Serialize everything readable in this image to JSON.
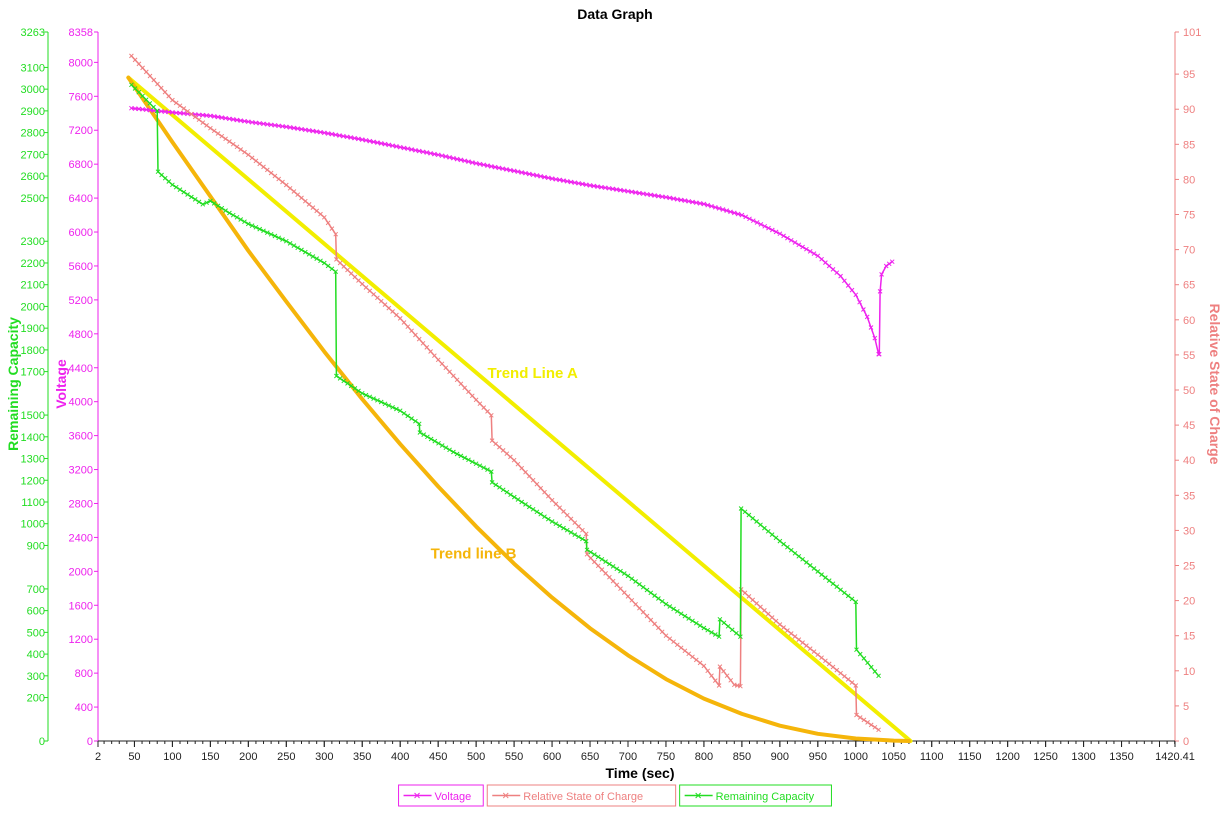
{
  "chart_data": {
    "type": "line",
    "title": "Data Graph",
    "xlabel": "Time (sec)",
    "xlim": [
      2,
      1420.41
    ],
    "x_ticks": [
      "2",
      "50",
      "100",
      "150",
      "200",
      "250",
      "300",
      "350",
      "400",
      "450",
      "500",
      "550",
      "600",
      "650",
      "700",
      "750",
      "800",
      "850",
      "900",
      "950",
      "1000",
      "1050",
      "1100",
      "1150",
      "1200",
      "1250",
      "1300",
      "1350",
      "1420.41"
    ],
    "axes": {
      "remaining_capacity": {
        "label": "Remaining Capacity",
        "color": "#22dd22",
        "ylim": [
          0,
          3263
        ],
        "ticks": [
          {
            "value": 0,
            "label": "0"
          },
          {
            "value": 200,
            "label": "200"
          },
          {
            "value": 300,
            "label": "300"
          },
          {
            "value": 400,
            "label": "400"
          },
          {
            "value": 500,
            "label": "500"
          },
          {
            "value": 600,
            "label": "600"
          },
          {
            "value": 700,
            "label": "700"
          },
          {
            "value": 900,
            "label": "900"
          },
          {
            "value": 1000,
            "label": "1000"
          },
          {
            "value": 1100,
            "label": "1100"
          },
          {
            "value": 1200,
            "label": "1200"
          },
          {
            "value": 1300,
            "label": "1300"
          },
          {
            "value": 1400,
            "label": "1400"
          },
          {
            "value": 1500,
            "label": "1500"
          },
          {
            "value": 1700,
            "label": "1700"
          },
          {
            "value": 1800,
            "label": "1800"
          },
          {
            "value": 1900,
            "label": "1900"
          },
          {
            "value": 2000,
            "label": "2000"
          },
          {
            "value": 2100,
            "label": "2100"
          },
          {
            "value": 2200,
            "label": "2200"
          },
          {
            "value": 2300,
            "label": "2300"
          },
          {
            "value": 2500,
            "label": "2500"
          },
          {
            "value": 2600,
            "label": "2600"
          },
          {
            "value": 2700,
            "label": "2700"
          },
          {
            "value": 2800,
            "label": "2800"
          },
          {
            "value": 2900,
            "label": "2900"
          },
          {
            "value": 3000,
            "label": "3000"
          },
          {
            "value": 3100,
            "label": "3100"
          },
          {
            "value": 3263,
            "label": "3263"
          }
        ]
      },
      "voltage": {
        "label": "Voltage",
        "color": "#ee22ee",
        "ylim": [
          0,
          8358
        ],
        "ticks": [
          {
            "value": 0,
            "label": "0"
          },
          {
            "value": 400,
            "label": "400"
          },
          {
            "value": 800,
            "label": "800"
          },
          {
            "value": 1200,
            "label": "1200"
          },
          {
            "value": 1600,
            "label": "1600"
          },
          {
            "value": 2000,
            "label": "2000"
          },
          {
            "value": 2400,
            "label": "2400"
          },
          {
            "value": 2800,
            "label": "2800"
          },
          {
            "value": 3200,
            "label": "3200"
          },
          {
            "value": 3600,
            "label": "3600"
          },
          {
            "value": 4000,
            "label": "4000"
          },
          {
            "value": 4400,
            "label": "4400"
          },
          {
            "value": 4800,
            "label": "4800"
          },
          {
            "value": 5200,
            "label": "5200"
          },
          {
            "value": 5600,
            "label": "5600"
          },
          {
            "value": 6000,
            "label": "6000"
          },
          {
            "value": 6400,
            "label": "6400"
          },
          {
            "value": 6800,
            "label": "6800"
          },
          {
            "value": 7200,
            "label": "7200"
          },
          {
            "value": 7600,
            "label": "7600"
          },
          {
            "value": 8000,
            "label": "8000"
          },
          {
            "value": 8358,
            "label": "8358"
          }
        ]
      },
      "relative_state_of_charge": {
        "label": "Relative State of Charge",
        "color": "#ee8080",
        "ylim": [
          0,
          101
        ],
        "ticks": [
          {
            "value": 0,
            "label": "0"
          },
          {
            "value": 5,
            "label": "5"
          },
          {
            "value": 10,
            "label": "10"
          },
          {
            "value": 15,
            "label": "15"
          },
          {
            "value": 20,
            "label": "20"
          },
          {
            "value": 25,
            "label": "25"
          },
          {
            "value": 30,
            "label": "30"
          },
          {
            "value": 35,
            "label": "35"
          },
          {
            "value": 40,
            "label": "40"
          },
          {
            "value": 45,
            "label": "45"
          },
          {
            "value": 50,
            "label": "50"
          },
          {
            "value": 55,
            "label": "55"
          },
          {
            "value": 60,
            "label": "60"
          },
          {
            "value": 65,
            "label": "65"
          },
          {
            "value": 70,
            "label": "70"
          },
          {
            "value": 75,
            "label": "75"
          },
          {
            "value": 80,
            "label": "80"
          },
          {
            "value": 85,
            "label": "85"
          },
          {
            "value": 90,
            "label": "90"
          },
          {
            "value": 95,
            "label": "95"
          },
          {
            "value": 101,
            "label": "101"
          }
        ]
      }
    },
    "series": [
      {
        "name": "Voltage",
        "axis": "voltage",
        "color": "#ee22ee",
        "points": [
          [
            46,
            7460
          ],
          [
            100,
            7410
          ],
          [
            150,
            7370
          ],
          [
            200,
            7300
          ],
          [
            250,
            7240
          ],
          [
            300,
            7170
          ],
          [
            350,
            7090
          ],
          [
            400,
            7000
          ],
          [
            450,
            6910
          ],
          [
            500,
            6810
          ],
          [
            550,
            6720
          ],
          [
            600,
            6630
          ],
          [
            650,
            6550
          ],
          [
            700,
            6480
          ],
          [
            750,
            6410
          ],
          [
            800,
            6330
          ],
          [
            850,
            6200
          ],
          [
            900,
            5980
          ],
          [
            950,
            5720
          ],
          [
            980,
            5480
          ],
          [
            1000,
            5260
          ],
          [
            1015,
            5000
          ],
          [
            1025,
            4750
          ],
          [
            1030,
            4560
          ],
          [
            1031,
            4560
          ],
          [
            1032,
            5300
          ],
          [
            1034,
            5500
          ],
          [
            1040,
            5600
          ],
          [
            1048,
            5650
          ]
        ]
      },
      {
        "name": "Relative State of Charge",
        "axis": "relative_state_of_charge",
        "color": "#ee8080",
        "points": [
          [
            46,
            97.6
          ],
          [
            100,
            91.3
          ],
          [
            150,
            87.3
          ],
          [
            200,
            83.5
          ],
          [
            250,
            79.2
          ],
          [
            300,
            74.6
          ],
          [
            315,
            72.2
          ],
          [
            316,
            68.6
          ],
          [
            350,
            65.1
          ],
          [
            400,
            60.2
          ],
          [
            450,
            54.3
          ],
          [
            500,
            48.6
          ],
          [
            520,
            46.4
          ],
          [
            521,
            42.8
          ],
          [
            550,
            40.0
          ],
          [
            600,
            34.3
          ],
          [
            645,
            29.5
          ],
          [
            646,
            26.6
          ],
          [
            700,
            20.6
          ],
          [
            750,
            15.0
          ],
          [
            800,
            10.7
          ],
          [
            820,
            7.9
          ],
          [
            821,
            10.6
          ],
          [
            840,
            8.0
          ],
          [
            848,
            7.8
          ],
          [
            849,
            21.6
          ],
          [
            900,
            16.6
          ],
          [
            950,
            12.3
          ],
          [
            1000,
            7.9
          ],
          [
            1001,
            3.7
          ],
          [
            1030,
            1.6
          ]
        ]
      },
      {
        "name": "Remaining Capacity",
        "axis": "remaining_capacity",
        "color": "#22dd22",
        "points": [
          [
            46,
            3020
          ],
          [
            80,
            2900
          ],
          [
            81,
            2620
          ],
          [
            100,
            2560
          ],
          [
            140,
            2470
          ],
          [
            150,
            2485
          ],
          [
            175,
            2430
          ],
          [
            200,
            2380
          ],
          [
            250,
            2300
          ],
          [
            300,
            2200
          ],
          [
            315,
            2160
          ],
          [
            316,
            1680
          ],
          [
            350,
            1600
          ],
          [
            400,
            1520
          ],
          [
            425,
            1460
          ],
          [
            426,
            1420
          ],
          [
            470,
            1330
          ],
          [
            520,
            1240
          ],
          [
            521,
            1190
          ],
          [
            560,
            1100
          ],
          [
            600,
            1010
          ],
          [
            645,
            920
          ],
          [
            646,
            880
          ],
          [
            700,
            760
          ],
          [
            750,
            630
          ],
          [
            800,
            520
          ],
          [
            820,
            480
          ],
          [
            821,
            560
          ],
          [
            848,
            480
          ],
          [
            849,
            1070
          ],
          [
            900,
            920
          ],
          [
            950,
            780
          ],
          [
            1000,
            640
          ],
          [
            1001,
            420
          ],
          [
            1030,
            300
          ]
        ]
      },
      {
        "name": "Trend Line A",
        "axis": "voltage",
        "color": "#f2ee00",
        "label": "Trend Line A",
        "label_at": [
          515,
          4280
        ],
        "points": [
          [
            42,
            7820
          ],
          [
            1072,
            0
          ]
        ]
      },
      {
        "name": "Trend line B",
        "axis": "voltage",
        "color": "#f5b50a",
        "label": "Trend line B",
        "label_at": [
          440,
          2150
        ],
        "points": [
          [
            42,
            7820
          ],
          [
            100,
            7060
          ],
          [
            150,
            6420
          ],
          [
            200,
            5780
          ],
          [
            250,
            5180
          ],
          [
            300,
            4590
          ],
          [
            350,
            4030
          ],
          [
            400,
            3500
          ],
          [
            450,
            3000
          ],
          [
            500,
            2530
          ],
          [
            550,
            2090
          ],
          [
            600,
            1690
          ],
          [
            650,
            1330
          ],
          [
            700,
            1010
          ],
          [
            750,
            730
          ],
          [
            800,
            500
          ],
          [
            850,
            320
          ],
          [
            900,
            180
          ],
          [
            950,
            85
          ],
          [
            1000,
            30
          ],
          [
            1050,
            5
          ],
          [
            1070,
            0
          ]
        ]
      }
    ],
    "legend": {
      "placement": "bottom-center",
      "entries": [
        "Voltage",
        "Relative State of Charge",
        "Remaining Capacity"
      ]
    }
  }
}
